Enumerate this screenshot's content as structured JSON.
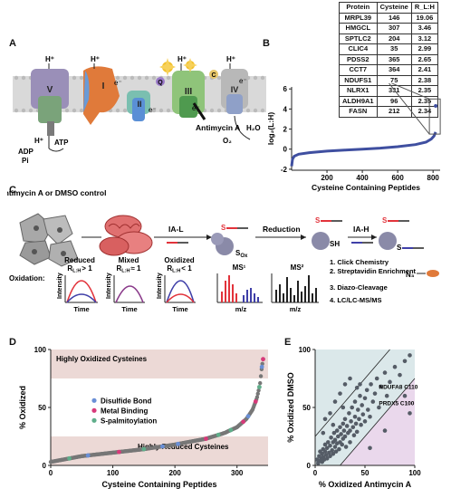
{
  "panels": {
    "a": "A",
    "b": "B",
    "c": "C",
    "d": "D",
    "e": "E"
  },
  "panelA": {
    "complexes": [
      "V",
      "I",
      "II",
      "III",
      "IV"
    ],
    "hplus": "H⁺",
    "electron": "e⁻",
    "q": "Q",
    "c": "C",
    "adp": "ADP",
    "pi": "Pi",
    "atp": "ATP",
    "water": "H₂O",
    "oxygen": "O₂",
    "inhibitor": "Antimycin A"
  },
  "panelB": {
    "table": {
      "headers": [
        "Protein",
        "Cysteine",
        "R_L:H"
      ],
      "rows": [
        [
          "MRPL39",
          "146",
          "19.06"
        ],
        [
          "HMGCL",
          "307",
          "3.46"
        ],
        [
          "SPTLC2",
          "204",
          "3.12"
        ],
        [
          "CLIC4",
          "35",
          "2.99"
        ],
        [
          "PDSS2",
          "365",
          "2.65"
        ],
        [
          "CCT7",
          "364",
          "2.41"
        ],
        [
          "NDUFS1",
          "75",
          "2.38"
        ],
        [
          "NLRX1",
          "331",
          "2.35"
        ],
        [
          "ALDH9A1",
          "96",
          "2.35"
        ],
        [
          "FASN",
          "212",
          "2.34"
        ]
      ]
    },
    "chart_data": {
      "type": "scatter",
      "xlabel": "Cysteine Containing Peptides",
      "ylabel": "log₂(L:H)",
      "xlim": [
        0,
        840
      ],
      "ylim": [
        -2.1,
        6.2
      ],
      "xticks": [
        "200",
        "400",
        "600",
        "800"
      ],
      "yticks": [
        "-2",
        "0",
        "2",
        "4",
        "6"
      ],
      "curve": [
        [
          0,
          -1.7
        ],
        [
          5,
          -1.0
        ],
        [
          15,
          -0.7
        ],
        [
          40,
          -0.5
        ],
        [
          100,
          -0.35
        ],
        [
          200,
          -0.2
        ],
        [
          300,
          -0.1
        ],
        [
          400,
          0.0
        ],
        [
          500,
          0.1
        ],
        [
          600,
          0.25
        ],
        [
          700,
          0.45
        ],
        [
          760,
          0.7
        ],
        [
          790,
          1.0
        ],
        [
          805,
          1.3
        ],
        [
          815,
          1.7
        ]
      ],
      "outlier": [
        815,
        4.3
      ]
    }
  },
  "panelC": {
    "cell_label": "Antimycin A or DMSO control",
    "ial": "IA-L",
    "reduction": "Reduction",
    "iah": "IA-H",
    "sox": "S",
    "sox_sub": "Ox",
    "sh": "SH",
    "s": "S",
    "n3": "N₃",
    "steps": [
      "1. Click Chemistry",
      "2. Streptavidin Enrichment",
      "3. Diazo-Cleavage",
      "4. LC/LC-MS/MS"
    ],
    "oxidation": "Oxidation:",
    "states": [
      {
        "name": "Reduced",
        "ratio": "R",
        "sub": "L:H",
        "rel": "> 1"
      },
      {
        "name": "Mixed",
        "ratio": "R",
        "sub": "L:H",
        "rel": "≈ 1"
      },
      {
        "name": "Oxidized",
        "ratio": "R",
        "sub": "L:H",
        "rel": "< 1"
      }
    ],
    "intensity": "Intensity",
    "time": "Time",
    "ms1": "MS¹",
    "ms2": "MS²",
    "mz": "m/z",
    "colors": {
      "red": "#e2333b",
      "blue": "#3f3fa8",
      "purple": "#8a3a8a",
      "gray": "#777"
    }
  },
  "panelD": {
    "chart_data": {
      "type": "scatter",
      "xlabel": "Cysteine Containing Peptides",
      "ylabel": "% Oxidized",
      "xlim": [
        0,
        350
      ],
      "ylim": [
        0,
        100
      ],
      "xticks": [
        "0",
        "100",
        "200",
        "300"
      ],
      "yticks": [
        "0",
        "50",
        "100"
      ],
      "curve": [
        [
          0,
          3
        ],
        [
          20,
          5
        ],
        [
          50,
          8
        ],
        [
          100,
          11
        ],
        [
          150,
          14
        ],
        [
          200,
          18
        ],
        [
          250,
          23
        ],
        [
          280,
          28
        ],
        [
          300,
          33
        ],
        [
          315,
          40
        ],
        [
          325,
          48
        ],
        [
          332,
          58
        ],
        [
          337,
          70
        ],
        [
          340,
          85
        ],
        [
          343,
          95
        ]
      ],
      "bands": {
        "top": "Highly Oxidized Cysteines",
        "bottom": "Highly Reduced Cysteines"
      },
      "legend": [
        "Disulfide Bond",
        "Metal Binding",
        "S-palmitoylation"
      ],
      "legend_colors": [
        "#6a8fd6",
        "#d83a7a",
        "#5fae8a"
      ]
    }
  },
  "panelE": {
    "chart_data": {
      "type": "scatter",
      "xlabel": "% Oxidized Antimycin A",
      "ylabel": "% Oxidized DMSO",
      "xlim": [
        0,
        100
      ],
      "ylim": [
        0,
        100
      ],
      "xticks": [
        "0",
        "50",
        "100"
      ],
      "yticks": [
        "0",
        "50",
        "100"
      ],
      "annotations": [
        "NDUFA8 C110",
        "PRDX5 C100"
      ],
      "points": [
        [
          2,
          5
        ],
        [
          3,
          2
        ],
        [
          4,
          8
        ],
        [
          5,
          4
        ],
        [
          5,
          12
        ],
        [
          6,
          6
        ],
        [
          7,
          3
        ],
        [
          7,
          10
        ],
        [
          8,
          14
        ],
        [
          8,
          7
        ],
        [
          9,
          5
        ],
        [
          10,
          12
        ],
        [
          10,
          18
        ],
        [
          11,
          9
        ],
        [
          12,
          15
        ],
        [
          12,
          6
        ],
        [
          13,
          20
        ],
        [
          14,
          11
        ],
        [
          15,
          8
        ],
        [
          15,
          17
        ],
        [
          16,
          24
        ],
        [
          17,
          13
        ],
        [
          18,
          10
        ],
        [
          18,
          20
        ],
        [
          19,
          28
        ],
        [
          20,
          16
        ],
        [
          20,
          22
        ],
        [
          21,
          12
        ],
        [
          22,
          30
        ],
        [
          22,
          19
        ],
        [
          23,
          25
        ],
        [
          24,
          14
        ],
        [
          25,
          33
        ],
        [
          25,
          20
        ],
        [
          26,
          27
        ],
        [
          27,
          18
        ],
        [
          28,
          36
        ],
        [
          28,
          23
        ],
        [
          29,
          30
        ],
        [
          30,
          40
        ],
        [
          30,
          25
        ],
        [
          31,
          16
        ],
        [
          32,
          34
        ],
        [
          33,
          28
        ],
        [
          34,
          45
        ],
        [
          35,
          30
        ],
        [
          35,
          20
        ],
        [
          36,
          38
        ],
        [
          37,
          50
        ],
        [
          38,
          33
        ],
        [
          39,
          26
        ],
        [
          40,
          42
        ],
        [
          40,
          55
        ],
        [
          41,
          36
        ],
        [
          42,
          29
        ],
        [
          43,
          48
        ],
        [
          44,
          40
        ],
        [
          45,
          60
        ],
        [
          46,
          35
        ],
        [
          47,
          52
        ],
        [
          48,
          44
        ],
        [
          50,
          58
        ],
        [
          50,
          38
        ],
        [
          52,
          65
        ],
        [
          53,
          48
        ],
        [
          55,
          42
        ],
        [
          56,
          70
        ],
        [
          58,
          55
        ],
        [
          60,
          62
        ],
        [
          62,
          75
        ],
        [
          64,
          50
        ],
        [
          66,
          68
        ],
        [
          70,
          80
        ],
        [
          72,
          60
        ],
        [
          75,
          72
        ],
        [
          80,
          85
        ],
        [
          85,
          78
        ],
        [
          90,
          90
        ],
        [
          95,
          95
        ],
        [
          15,
          45
        ],
        [
          20,
          55
        ],
        [
          25,
          62
        ],
        [
          30,
          70
        ],
        [
          10,
          40
        ],
        [
          35,
          75
        ],
        [
          18,
          35
        ],
        [
          42,
          67
        ],
        [
          8,
          28
        ],
        [
          28,
          50
        ],
        [
          45,
          70
        ],
        [
          90,
          60
        ],
        [
          95,
          45
        ],
        [
          70,
          30
        ],
        [
          55,
          15
        ]
      ]
    }
  }
}
